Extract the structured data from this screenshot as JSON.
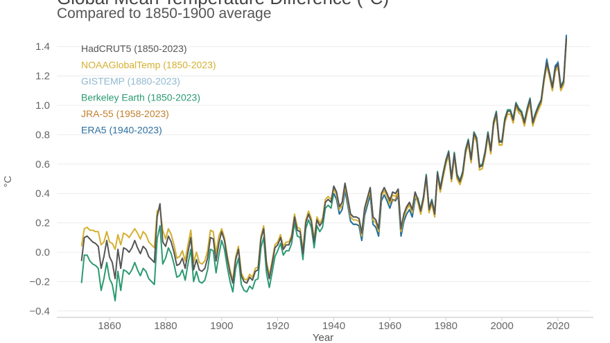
{
  "chart_data": {
    "type": "line",
    "title": "Global Mean Temperature Difference (°C)",
    "subtitle": "Compared to 1850-1900 average",
    "xlabel": "Year",
    "ylabel": "°C",
    "xlim": [
      1843,
      2030
    ],
    "ylim": [
      -0.45,
      1.5
    ],
    "xticks": [
      1860,
      1880,
      1900,
      1920,
      1940,
      1960,
      1980,
      2000,
      2020
    ],
    "yticks": [
      -0.4,
      -0.2,
      0.0,
      0.2,
      0.4,
      0.6,
      0.8,
      1.0,
      1.2,
      1.4
    ],
    "ytick_labels": [
      "−0.4",
      "−0.2",
      "0.0",
      "0.2",
      "0.4",
      "0.6",
      "0.8",
      "1.0",
      "1.2",
      "1.4"
    ],
    "grid": "horizontal",
    "legend_placement": "top-left",
    "series": [
      {
        "name": "Berkeley Earth (1850-2023)",
        "color": "#2a9a70",
        "start": 1850,
        "values": [
          -0.21,
          -0.02,
          -0.02,
          -0.06,
          -0.08,
          -0.09,
          -0.11,
          -0.26,
          -0.18,
          -0.07,
          -0.18,
          -0.22,
          -0.33,
          -0.13,
          -0.26,
          -0.12,
          -0.13,
          -0.15,
          -0.12,
          -0.07,
          -0.12,
          -0.16,
          -0.11,
          -0.13,
          -0.18,
          -0.2,
          -0.22,
          0.09,
          0.18,
          -0.08,
          -0.04,
          0.03,
          -0.01,
          -0.08,
          -0.17,
          -0.16,
          -0.12,
          -0.19,
          -0.08,
          0.02,
          -0.2,
          -0.13,
          -0.2,
          -0.21,
          -0.19,
          -0.12,
          0.02,
          0.01,
          -0.14,
          -0.02,
          0.08,
          0.02,
          -0.1,
          -0.2,
          -0.27,
          -0.11,
          -0.04,
          -0.22,
          -0.26,
          -0.27,
          -0.23,
          -0.25,
          -0.19,
          -0.18,
          0.03,
          0.1,
          -0.14,
          -0.24,
          -0.14,
          -0.03,
          0.01,
          0.06,
          -0.02,
          0.01,
          0.01,
          0.06,
          0.2,
          0.11,
          0.1,
          -0.05,
          0.16,
          0.22,
          0.17,
          0.03,
          0.18,
          0.14,
          0.17,
          0.3,
          0.32,
          0.3,
          0.4,
          0.36,
          0.26,
          0.29,
          0.42,
          0.32,
          0.21,
          0.19,
          0.19,
          0.18,
          0.08,
          0.25,
          0.32,
          0.39,
          0.19,
          0.17,
          0.11,
          0.35,
          0.39,
          0.35,
          0.3,
          0.36,
          0.35,
          0.38,
          0.11,
          0.21,
          0.26,
          0.29,
          0.24,
          0.36,
          0.37,
          0.29,
          0.38,
          0.53,
          0.3,
          0.36,
          0.27,
          0.55,
          0.44,
          0.54,
          0.63,
          0.69,
          0.51,
          0.68,
          0.53,
          0.49,
          0.55,
          0.7,
          0.77,
          0.64,
          0.82,
          0.78,
          0.59,
          0.6,
          0.69,
          0.82,
          0.7,
          0.89,
          0.96,
          0.76,
          0.76,
          0.91,
          0.97,
          0.97,
          0.91,
          1.02,
          0.98,
          0.96,
          0.89,
          0.98,
          1.05,
          0.89,
          0.95,
          1.0,
          1.04,
          1.19,
          1.3,
          1.22,
          1.13,
          1.26,
          1.29,
          1.13,
          1.17,
          1.47
        ]
      },
      {
        "name": "GISTEMP (1880-2023)",
        "color": "#8fb8d0",
        "start": 1880,
        "values": [
          0.09,
          0.16,
          0.12,
          0.05,
          -0.04,
          -0.03,
          0.01,
          -0.06,
          0.05,
          0.15,
          -0.07,
          0.0,
          -0.07,
          -0.08,
          -0.06,
          0.01,
          0.15,
          0.14,
          -0.01,
          0.11,
          0.14,
          0.08,
          -0.04,
          -0.14,
          -0.21,
          -0.05,
          0.02,
          -0.16,
          -0.2,
          -0.21,
          -0.17,
          -0.19,
          -0.13,
          -0.12,
          0.09,
          0.16,
          -0.08,
          -0.18,
          -0.08,
          0.03,
          0.05,
          0.1,
          0.02,
          0.05,
          0.05,
          0.1,
          0.24,
          0.15,
          0.14,
          -0.01,
          0.2,
          0.26,
          0.21,
          0.07,
          0.22,
          0.18,
          0.21,
          0.34,
          0.36,
          0.34,
          0.45,
          0.41,
          0.31,
          0.34,
          0.47,
          0.37,
          0.26,
          0.24,
          0.24,
          0.23,
          0.13,
          0.3,
          0.37,
          0.44,
          0.24,
          0.22,
          0.16,
          0.4,
          0.44,
          0.4,
          0.35,
          0.41,
          0.4,
          0.43,
          0.16,
          0.26,
          0.31,
          0.34,
          0.29,
          0.41,
          0.36,
          0.28,
          0.37,
          0.52,
          0.29,
          0.35,
          0.26,
          0.54,
          0.43,
          0.53,
          0.62,
          0.68,
          0.5,
          0.67,
          0.52,
          0.48,
          0.54,
          0.69,
          0.76,
          0.63,
          0.81,
          0.77,
          0.58,
          0.59,
          0.68,
          0.81,
          0.69,
          0.88,
          0.95,
          0.75,
          0.75,
          0.9,
          0.96,
          0.96,
          0.9,
          1.01,
          0.97,
          0.95,
          0.88,
          0.97,
          1.04,
          0.88,
          0.94,
          0.99,
          1.03,
          1.18,
          1.32,
          1.21,
          1.12,
          1.25,
          1.3,
          1.12,
          1.16,
          1.46
        ]
      },
      {
        "name": "ERA5 (1940-2023)",
        "color": "#2a6fa0",
        "start": 1940,
        "values": [
          0.4,
          0.36,
          0.26,
          0.29,
          0.42,
          0.32,
          0.21,
          0.19,
          0.19,
          0.18,
          0.08,
          0.25,
          0.32,
          0.39,
          0.19,
          0.17,
          0.11,
          0.35,
          0.39,
          0.35,
          0.3,
          0.36,
          0.35,
          0.38,
          0.11,
          0.21,
          0.26,
          0.29,
          0.24,
          0.36,
          0.36,
          0.28,
          0.37,
          0.52,
          0.29,
          0.35,
          0.26,
          0.54,
          0.43,
          0.53,
          0.62,
          0.68,
          0.5,
          0.67,
          0.52,
          0.48,
          0.54,
          0.69,
          0.76,
          0.63,
          0.81,
          0.77,
          0.58,
          0.59,
          0.68,
          0.81,
          0.69,
          0.88,
          0.95,
          0.75,
          0.75,
          0.9,
          0.96,
          0.96,
          0.9,
          1.01,
          0.97,
          0.95,
          0.88,
          0.97,
          1.04,
          0.88,
          0.94,
          0.99,
          1.03,
          1.18,
          1.31,
          1.21,
          1.12,
          1.27,
          1.29,
          1.12,
          1.16,
          1.48
        ]
      },
      {
        "name": "JRA-55 (1958-2023)",
        "color": "#c08030",
        "start": 1958,
        "values": [
          0.42,
          0.38,
          0.37,
          0.35,
          0.36,
          0.4,
          0.15,
          0.24,
          0.3,
          0.33,
          0.28,
          0.4,
          0.34,
          0.26,
          0.35,
          0.5,
          0.27,
          0.33,
          0.24,
          0.52,
          0.41,
          0.51,
          0.6,
          0.66,
          0.48,
          0.65,
          0.5,
          0.46,
          0.52,
          0.67,
          0.74,
          0.61,
          0.79,
          0.75,
          0.56,
          0.57,
          0.66,
          0.79,
          0.67,
          0.86,
          0.93,
          0.73,
          0.73,
          0.88,
          0.94,
          0.94,
          0.88,
          0.99,
          0.95,
          0.93,
          0.86,
          0.95,
          1.02,
          0.86,
          0.92,
          0.97,
          1.01,
          1.16,
          1.27,
          1.19,
          1.1,
          1.23,
          1.26,
          1.1,
          1.14,
          1.44
        ]
      },
      {
        "name": "NOAAGlobalTemp (1850-2023)",
        "color": "#d4b030",
        "start": 1850,
        "values": [
          0.04,
          0.16,
          0.17,
          0.15,
          0.15,
          0.14,
          0.14,
          0.05,
          0.07,
          0.14,
          0.07,
          0.06,
          0.02,
          0.12,
          0.05,
          0.13,
          0.12,
          0.1,
          0.13,
          0.16,
          0.13,
          0.09,
          0.14,
          0.12,
          0.07,
          0.05,
          0.03,
          0.28,
          0.3,
          0.15,
          0.09,
          0.16,
          0.12,
          0.05,
          -0.04,
          -0.03,
          0.01,
          -0.06,
          0.05,
          0.15,
          -0.07,
          0.0,
          -0.07,
          -0.08,
          -0.06,
          0.01,
          0.15,
          0.14,
          -0.01,
          0.11,
          0.16,
          0.1,
          -0.02,
          -0.12,
          -0.19,
          -0.03,
          0.04,
          -0.14,
          -0.18,
          -0.19,
          -0.15,
          -0.17,
          -0.11,
          -0.1,
          0.11,
          0.18,
          -0.06,
          -0.16,
          -0.06,
          0.05,
          0.07,
          0.12,
          0.04,
          0.07,
          0.07,
          0.12,
          0.26,
          0.17,
          0.16,
          0.01,
          0.22,
          0.28,
          0.23,
          0.09,
          0.24,
          0.2,
          0.23,
          0.36,
          0.38,
          0.36,
          0.43,
          0.39,
          0.29,
          0.32,
          0.45,
          0.35,
          0.24,
          0.22,
          0.22,
          0.21,
          0.11,
          0.28,
          0.35,
          0.42,
          0.22,
          0.2,
          0.14,
          0.38,
          0.42,
          0.38,
          0.33,
          0.39,
          0.38,
          0.41,
          0.14,
          0.24,
          0.29,
          0.32,
          0.27,
          0.39,
          0.34,
          0.26,
          0.35,
          0.5,
          0.27,
          0.33,
          0.24,
          0.52,
          0.41,
          0.51,
          0.6,
          0.66,
          0.48,
          0.65,
          0.5,
          0.46,
          0.52,
          0.67,
          0.74,
          0.61,
          0.79,
          0.75,
          0.56,
          0.57,
          0.66,
          0.79,
          0.67,
          0.86,
          0.93,
          0.73,
          0.73,
          0.88,
          0.94,
          0.94,
          0.88,
          0.99,
          0.95,
          0.93,
          0.86,
          0.95,
          1.02,
          0.86,
          0.92,
          0.97,
          1.01,
          1.16,
          1.27,
          1.19,
          1.1,
          1.23,
          1.26,
          1.1,
          1.14,
          1.44
        ]
      },
      {
        "name": "HadCRUT5 (1850-2023)",
        "color": "#555555",
        "start": 1850,
        "values": [
          -0.06,
          0.1,
          0.11,
          0.09,
          0.07,
          0.06,
          0.04,
          -0.11,
          -0.03,
          0.08,
          -0.03,
          -0.07,
          -0.18,
          0.02,
          -0.11,
          0.03,
          0.02,
          0.0,
          0.03,
          0.08,
          0.03,
          -0.01,
          0.04,
          0.02,
          -0.03,
          -0.05,
          -0.07,
          0.24,
          0.33,
          0.07,
          0.04,
          0.11,
          0.07,
          0.0,
          -0.09,
          -0.08,
          -0.04,
          -0.11,
          0.0,
          0.1,
          -0.12,
          -0.05,
          -0.12,
          -0.13,
          -0.11,
          -0.04,
          0.1,
          0.09,
          -0.06,
          0.06,
          0.14,
          0.08,
          -0.04,
          -0.14,
          -0.21,
          -0.05,
          0.02,
          -0.16,
          -0.2,
          -0.21,
          -0.17,
          -0.19,
          -0.13,
          -0.12,
          0.09,
          0.16,
          -0.08,
          -0.18,
          -0.08,
          0.03,
          0.05,
          0.1,
          0.02,
          0.05,
          0.05,
          0.1,
          0.24,
          0.15,
          0.14,
          -0.01,
          0.2,
          0.26,
          0.21,
          0.07,
          0.22,
          0.18,
          0.21,
          0.34,
          0.36,
          0.34,
          0.45,
          0.41,
          0.31,
          0.34,
          0.47,
          0.37,
          0.26,
          0.24,
          0.24,
          0.23,
          0.13,
          0.3,
          0.37,
          0.44,
          0.24,
          0.22,
          0.16,
          0.4,
          0.44,
          0.4,
          0.35,
          0.41,
          0.4,
          0.43,
          0.16,
          0.26,
          0.31,
          0.34,
          0.29,
          0.41,
          0.36,
          0.28,
          0.37,
          0.52,
          0.29,
          0.35,
          0.26,
          0.54,
          0.43,
          0.53,
          0.62,
          0.68,
          0.5,
          0.67,
          0.52,
          0.48,
          0.54,
          0.69,
          0.76,
          0.63,
          0.81,
          0.77,
          0.58,
          0.59,
          0.68,
          0.81,
          0.69,
          0.88,
          0.95,
          0.75,
          0.75,
          0.9,
          0.96,
          0.96,
          0.9,
          1.01,
          0.97,
          0.95,
          0.88,
          0.97,
          1.04,
          0.88,
          0.94,
          0.99,
          1.03,
          1.18,
          1.29,
          1.21,
          1.12,
          1.25,
          1.28,
          1.12,
          1.16,
          1.46
        ]
      }
    ],
    "legend_order": [
      "HadCRUT5 (1850-2023)",
      "NOAAGlobalTemp (1850-2023)",
      "GISTEMP (1880-2023)",
      "Berkeley Earth (1850-2023)",
      "JRA-55 (1958-2023)",
      "ERA5 (1940-2023)"
    ]
  }
}
